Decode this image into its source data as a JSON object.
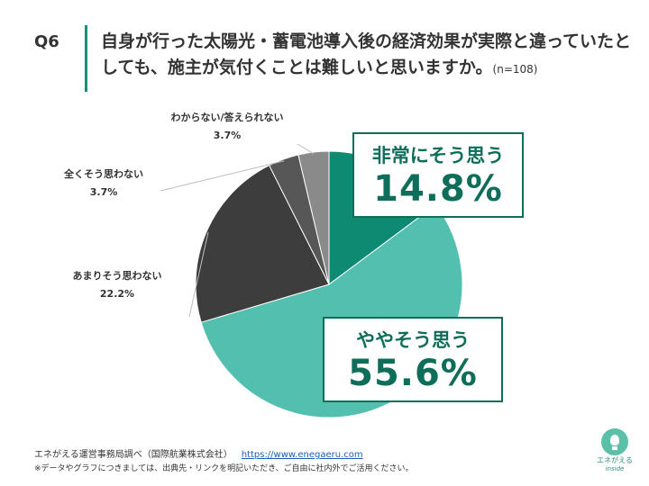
{
  "header": {
    "question_no": "Q6",
    "title": "自身が行った太陽光・蓄電池導入後の経済効果が実際と違っていたとしても、施主が気付くことは難しいと思いますか。",
    "sample": "(n=108)"
  },
  "chart_data": {
    "type": "pie",
    "title": "",
    "start_angle_deg": 0,
    "direction": "clockwise",
    "slices": [
      {
        "label": "非常にそう思う",
        "value": 14.8,
        "display": "14.8%",
        "color": "#0f8a72",
        "label_style": "box"
      },
      {
        "label": "ややそう思う",
        "value": 55.6,
        "display": "55.6%",
        "color": "#52bfaf",
        "label_style": "box"
      },
      {
        "label": "あまりそう思わない",
        "value": 22.2,
        "display": "22.2%",
        "color": "#3d3d3d",
        "label_style": "leader"
      },
      {
        "label": "全くそう思わない",
        "value": 3.7,
        "display": "3.7%",
        "color": "#575757",
        "label_style": "leader"
      },
      {
        "label": "わからない/答えられない",
        "value": 3.7,
        "display": "3.7%",
        "color": "#8a8a8a",
        "label_style": "leader"
      }
    ]
  },
  "footer": {
    "source": "エネがえる運営事務局調べ（国際航業株式会社）",
    "url": "https://www.enegaeru.com",
    "note": "※データやグラフにつきましては、出典先・リンクを明記いただき、ご自由に社内外でご活用ください。"
  },
  "logo": {
    "text": "エネがえる",
    "sub": "inside"
  }
}
